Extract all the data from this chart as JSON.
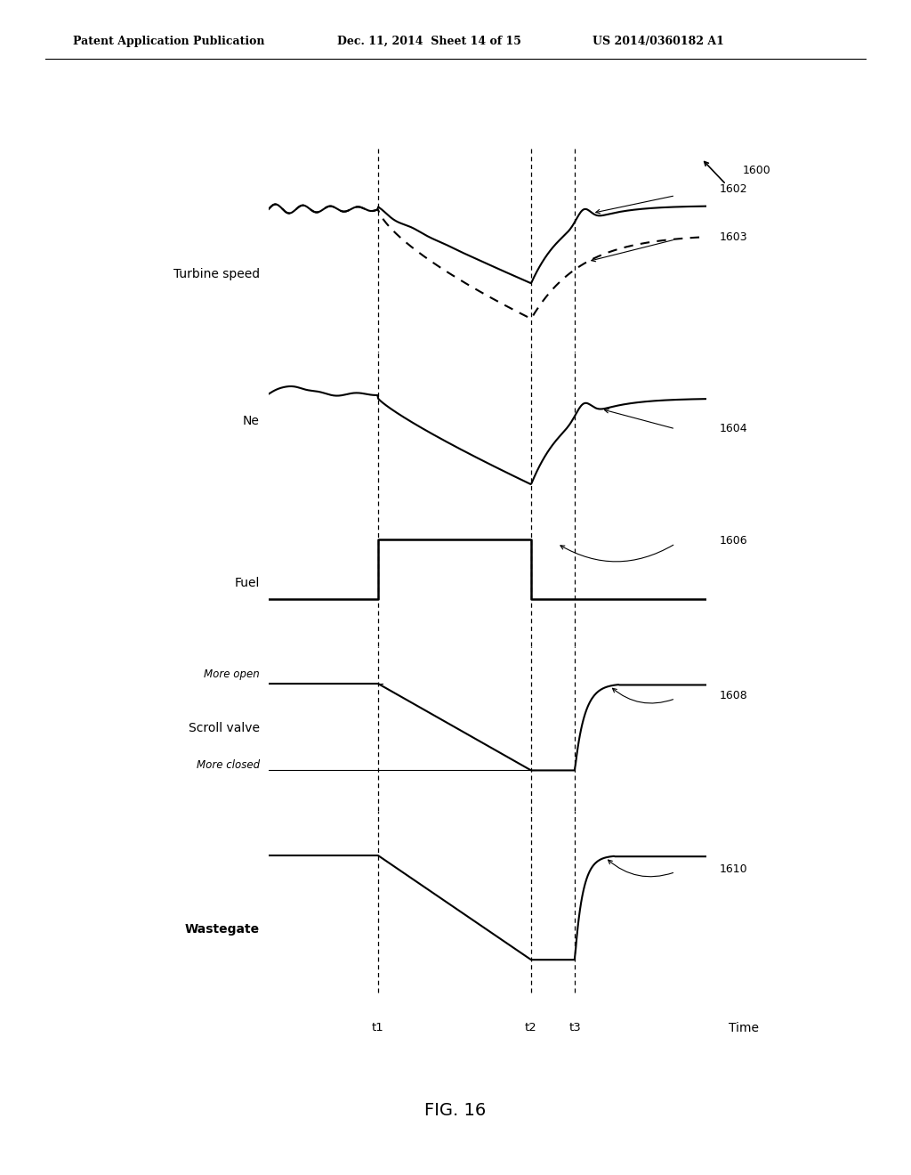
{
  "title_line1": "Patent Application Publication",
  "title_line2": "Dec. 11, 2014  Sheet 14 of 15",
  "title_line3": "US 2014/0360182 A1",
  "fig_label": "FIG. 16",
  "fig_number": "1600",
  "panel_labels": [
    "Turbine speed",
    "Ne",
    "Fuel",
    "Scroll valve",
    "Wastegate"
  ],
  "curve_labels": [
    "1602",
    "1603",
    "1604",
    "1606",
    "1608",
    "1610"
  ],
  "time_labels": [
    "t1",
    "t2",
    "t3"
  ],
  "time_label_x": "Time",
  "more_open_label": "More open",
  "more_closed_label": "More closed",
  "bg_color": "#ffffff",
  "line_color": "#000000",
  "t1": 0.25,
  "t2": 0.6,
  "t3": 0.7
}
